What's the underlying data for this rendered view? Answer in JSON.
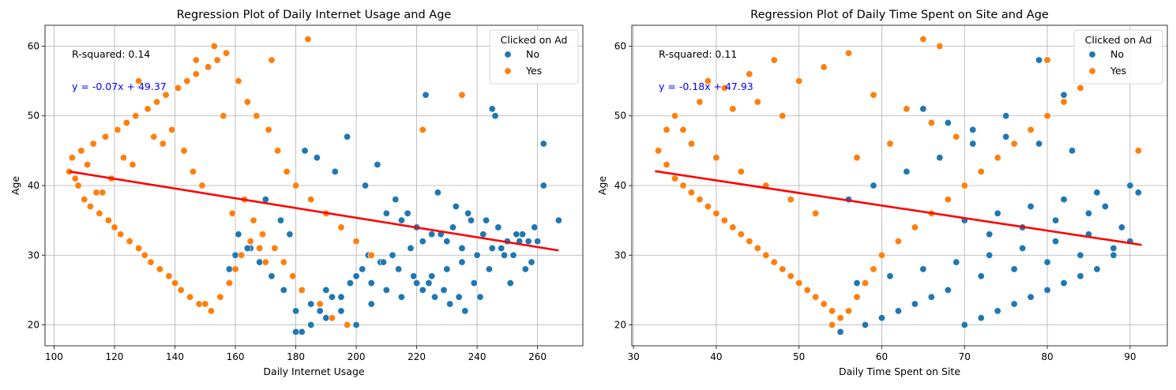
{
  "chart_data": [
    {
      "type": "scatter",
      "title": "Regression Plot of Daily Internet Usage and Age",
      "xlabel": "Daily Internet Usage",
      "ylabel": "Age",
      "xlim": [
        97,
        275
      ],
      "ylim": [
        17,
        63
      ],
      "xticks": [
        100,
        120,
        140,
        160,
        180,
        200,
        220,
        240,
        260
      ],
      "yticks": [
        20,
        30,
        40,
        50,
        60
      ],
      "grid": true,
      "legend": {
        "title": "Clicked on Ad",
        "position": "top-right",
        "entries": [
          "No",
          "Yes"
        ]
      },
      "annotations": {
        "r_squared": "R-squared: 0.14",
        "equation": "y = -0.07x + 49.37"
      },
      "regression": {
        "slope": -0.07,
        "intercept": 49.37,
        "x_range": [
          105,
          267
        ],
        "color": "#ff0000"
      },
      "series": [
        {
          "name": "No",
          "color": "#1f77b4",
          "x": [
            180,
            185,
            190,
            195,
            200,
            205,
            210,
            215,
            220,
            225,
            230,
            235,
            240,
            245,
            250,
            255,
            260,
            267,
            182,
            188,
            192,
            198,
            202,
            208,
            212,
            218,
            222,
            228,
            232,
            238,
            242,
            248,
            252,
            258,
            262,
            245,
            246,
            223,
            262,
            170,
            175,
            178,
            165,
            160,
            158,
            183,
            187,
            193,
            197,
            203,
            207,
            213,
            217,
            227,
            233,
            237,
            243,
            247,
            253,
            257,
            210,
            215,
            220,
            225,
            230,
            235,
            240,
            200,
            205,
            190,
            195,
            185,
            180,
            176,
            172,
            168,
            164,
            161,
            222,
            226,
            231,
            236,
            241,
            251,
            256,
            204,
            209,
            214,
            219,
            224,
            229,
            234,
            239,
            244,
            249,
            254,
            259
          ],
          "y": [
            19,
            20,
            21,
            22,
            20,
            23,
            25,
            24,
            26,
            27,
            28,
            29,
            30,
            31,
            32,
            33,
            32,
            35,
            19,
            22,
            24,
            26,
            28,
            29,
            30,
            31,
            32,
            33,
            34,
            35,
            33,
            31,
            30,
            29,
            40,
            51,
            50,
            53,
            46,
            38,
            35,
            33,
            31,
            30,
            28,
            45,
            44,
            42,
            47,
            40,
            43,
            38,
            36,
            39,
            37,
            36,
            35,
            34,
            33,
            32,
            36,
            35,
            34,
            33,
            32,
            31,
            30,
            27,
            26,
            25,
            24,
            23,
            22,
            25,
            27,
            29,
            31,
            33,
            25,
            24,
            23,
            22,
            24,
            26,
            28,
            30,
            29,
            28,
            27,
            26,
            25,
            24,
            26,
            28,
            30,
            32,
            34
          ]
        },
        {
          "name": "Yes",
          "color": "#ff7f0e",
          "x": [
            105,
            108,
            110,
            112,
            115,
            118,
            120,
            122,
            125,
            128,
            130,
            132,
            135,
            138,
            140,
            142,
            145,
            148,
            150,
            152,
            155,
            158,
            160,
            162,
            165,
            168,
            170,
            106,
            109,
            113,
            117,
            121,
            124,
            127,
            131,
            134,
            137,
            141,
            144,
            147,
            151,
            154,
            157,
            161,
            164,
            167,
            171,
            174,
            177,
            180,
            185,
            190,
            195,
            200,
            205,
            222,
            235,
            153,
            147,
            128,
            172,
            184,
            156,
            143,
            133,
            126,
            119,
            114,
            111,
            107,
            116,
            123,
            136,
            139,
            146,
            149,
            159,
            163,
            166,
            169,
            173,
            176,
            179,
            182,
            188,
            192,
            197
          ],
          "y": [
            42,
            40,
            38,
            37,
            36,
            35,
            34,
            33,
            32,
            31,
            30,
            29,
            28,
            27,
            26,
            25,
            24,
            23,
            23,
            22,
            24,
            26,
            28,
            30,
            32,
            31,
            29,
            44,
            45,
            46,
            47,
            48,
            49,
            50,
            51,
            52,
            53,
            54,
            55,
            56,
            57,
            58,
            59,
            55,
            52,
            50,
            48,
            45,
            42,
            40,
            38,
            36,
            34,
            32,
            30,
            48,
            53,
            60,
            58,
            55,
            58,
            61,
            50,
            45,
            47,
            43,
            41,
            39,
            43,
            41,
            39,
            44,
            46,
            48,
            42,
            40,
            36,
            38,
            35,
            33,
            31,
            29,
            27,
            25,
            23,
            21,
            20
          ]
        }
      ]
    },
    {
      "type": "scatter",
      "title": "Regression Plot of Daily Time Spent on Site and Age",
      "xlabel": "Daily Time Spent on Site",
      "ylabel": "Age",
      "xlim": [
        29.8,
        94.5
      ],
      "ylim": [
        17,
        63
      ],
      "xticks": [
        30,
        40,
        50,
        60,
        70,
        80,
        90
      ],
      "yticks": [
        20,
        30,
        40,
        50,
        60
      ],
      "grid": true,
      "legend": {
        "title": "Clicked on Ad",
        "position": "top-right",
        "entries": [
          "No",
          "Yes"
        ]
      },
      "annotations": {
        "r_squared": "R-squared: 0.11",
        "equation": "y = -0.18x + 47.93"
      },
      "regression": {
        "slope": -0.18,
        "intercept": 47.93,
        "x_range": [
          32.6,
          91.4
        ],
        "color": "#ff0000"
      },
      "series": [
        {
          "name": "No",
          "color": "#1f77b4",
          "x": [
            55,
            58,
            60,
            62,
            64,
            66,
            68,
            70,
            72,
            74,
            76,
            78,
            80,
            82,
            84,
            86,
            88,
            90,
            91,
            57,
            61,
            65,
            69,
            73,
            77,
            81,
            85,
            89,
            79,
            82,
            75,
            71,
            67,
            63,
            59,
            56,
            70,
            74,
            78,
            82,
            86,
            90,
            72,
            76,
            80,
            84,
            88,
            73,
            77,
            81,
            85,
            87,
            83,
            79,
            75,
            71,
            68,
            65
          ],
          "y": [
            19,
            20,
            21,
            22,
            23,
            24,
            25,
            20,
            21,
            22,
            23,
            24,
            25,
            26,
            27,
            28,
            30,
            32,
            39,
            26,
            27,
            28,
            29,
            30,
            31,
            32,
            33,
            34,
            58,
            53,
            50,
            46,
            44,
            42,
            40,
            38,
            35,
            36,
            37,
            38,
            39,
            40,
            27,
            28,
            29,
            30,
            31,
            33,
            34,
            35,
            36,
            37,
            45,
            46,
            47,
            48,
            49,
            51
          ]
        },
        {
          "name": "Yes",
          "color": "#ff7f0e",
          "x": [
            33,
            34,
            35,
            36,
            37,
            38,
            39,
            40,
            41,
            42,
            43,
            44,
            45,
            46,
            47,
            48,
            49,
            50,
            51,
            52,
            53,
            54,
            55,
            56,
            57,
            58,
            59,
            60,
            62,
            64,
            66,
            68,
            70,
            72,
            74,
            76,
            78,
            80,
            82,
            84,
            91,
            35,
            38,
            41,
            44,
            47,
            50,
            53,
            56,
            59,
            63,
            66,
            69,
            34,
            37,
            40,
            43,
            46,
            49,
            52,
            45,
            48,
            39,
            42,
            36,
            57,
            61,
            65,
            67,
            80,
            54
          ],
          "y": [
            45,
            43,
            41,
            40,
            39,
            38,
            37,
            36,
            35,
            34,
            33,
            32,
            31,
            30,
            29,
            28,
            27,
            26,
            25,
            24,
            23,
            22,
            21,
            22,
            24,
            26,
            28,
            30,
            32,
            34,
            36,
            38,
            40,
            42,
            44,
            46,
            48,
            50,
            52,
            54,
            45,
            50,
            52,
            54,
            56,
            58,
            55,
            57,
            59,
            53,
            51,
            49,
            47,
            48,
            46,
            44,
            42,
            40,
            38,
            36,
            52,
            50,
            55,
            51,
            48,
            44,
            46,
            61,
            60,
            58,
            20
          ]
        }
      ]
    }
  ]
}
